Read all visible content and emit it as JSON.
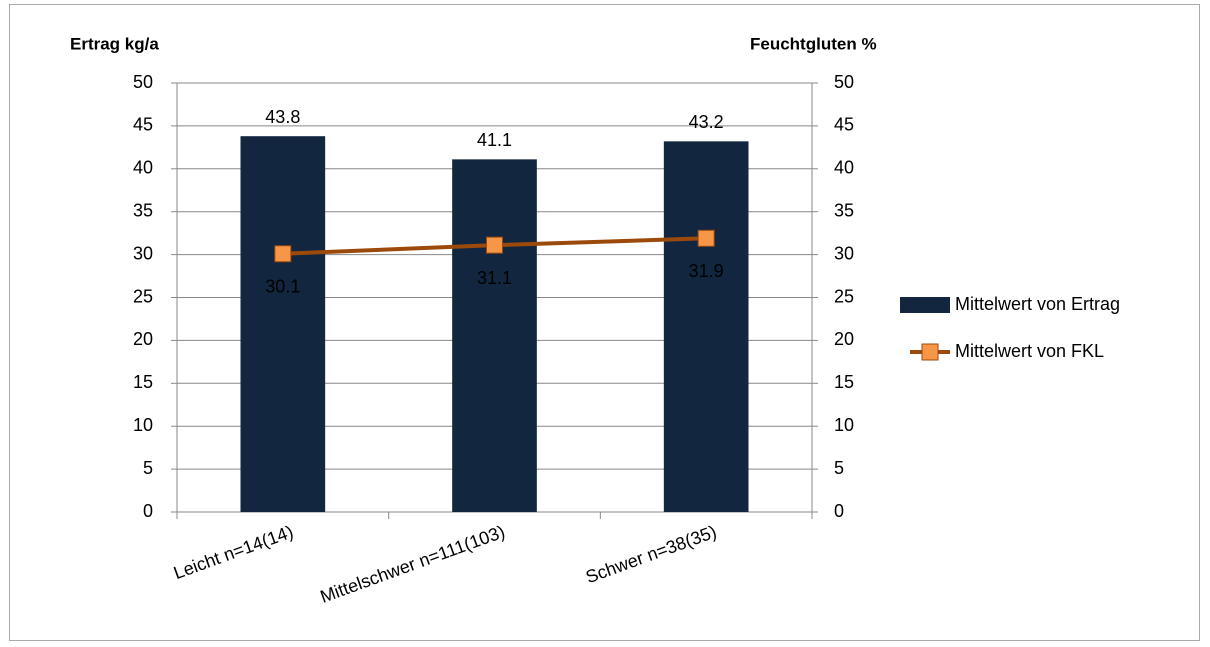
{
  "chart_data": {
    "type": "combo",
    "y_title": "Ertrag kg/a",
    "y2_title": "Feuchtgluten %",
    "categories": [
      "Leicht n=14(14)",
      "Mittelschwer n=111(103)",
      "Schwer n=38(35)"
    ],
    "series": [
      {
        "name": "Mittelwert von Ertrag",
        "type": "bar",
        "color": "#12263f",
        "label_color": "#000000",
        "values": [
          43.8,
          41.1,
          43.2
        ]
      },
      {
        "name": "Mittelwert von FKL",
        "type": "line",
        "axis": "y2",
        "color": "#9c4a0c",
        "marker_color": "#f79646",
        "label_color": "#e46c0a",
        "values": [
          30.1,
          31.1,
          31.9
        ]
      }
    ],
    "ylim": [
      0,
      50
    ],
    "yticks": [
      0,
      5,
      10,
      15,
      20,
      25,
      30,
      35,
      40,
      45,
      50
    ],
    "y2lim": [
      0,
      50
    ],
    "y2ticks": [
      0,
      5,
      10,
      15,
      20,
      25,
      30,
      35,
      40,
      45,
      50
    ],
    "grid": true,
    "legend": "right"
  }
}
